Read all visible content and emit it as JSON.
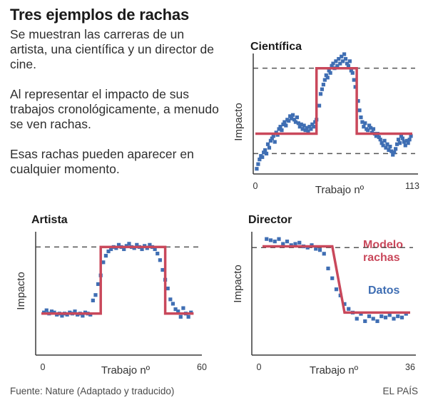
{
  "header": {
    "title": "Tres ejemplos de rachas",
    "intro": [
      "Se muestran las carreras de un artista, una científica y un director de cine.",
      "Al representar el impacto de sus trabajos cronológicamente, a menudo se ven rachas.",
      "Esas rachas pueden aparecer en cualquier momento."
    ]
  },
  "footer": {
    "source": "Fuente: Nature (Adaptado y traducido)",
    "brand": "EL PAÍS"
  },
  "legend": {
    "model": [
      "Modelo",
      "rachas"
    ],
    "data": "Datos"
  },
  "colors": {
    "model": "#c9485b",
    "data": "#3f6eb3",
    "axis": "#3a3a3a",
    "dashed": "#555555"
  },
  "chart_data": [
    {
      "id": "cientifica",
      "type": "scatter",
      "title": "Científica",
      "xlabel": "Trabajo nº",
      "ylabel": "Impacto",
      "xlim": [
        0,
        113
      ],
      "x_ticks": [
        "0",
        "113"
      ],
      "ylim": [
        0,
        1
      ],
      "dashed_levels": [
        0.88,
        0.15
      ],
      "model": {
        "name": "Modelo rachas",
        "steps": [
          [
            0,
            0.32
          ],
          [
            44,
            0.32
          ],
          [
            44,
            0.88
          ],
          [
            73,
            0.88
          ],
          [
            73,
            0.32
          ],
          [
            113,
            0.32
          ]
        ]
      },
      "points": [
        [
          1,
          0.02
        ],
        [
          2,
          0.06
        ],
        [
          3,
          0.1
        ],
        [
          4,
          0.13
        ],
        [
          5,
          0.12
        ],
        [
          6,
          0.16
        ],
        [
          7,
          0.18
        ],
        [
          8,
          0.15
        ],
        [
          9,
          0.23
        ],
        [
          10,
          0.2
        ],
        [
          11,
          0.26
        ],
        [
          12,
          0.28
        ],
        [
          13,
          0.3
        ],
        [
          14,
          0.25
        ],
        [
          15,
          0.33
        ],
        [
          16,
          0.31
        ],
        [
          17,
          0.36
        ],
        [
          18,
          0.38
        ],
        [
          19,
          0.35
        ],
        [
          20,
          0.4
        ],
        [
          21,
          0.42
        ],
        [
          22,
          0.39
        ],
        [
          23,
          0.44
        ],
        [
          24,
          0.43
        ],
        [
          25,
          0.47
        ],
        [
          26,
          0.45
        ],
        [
          27,
          0.48
        ],
        [
          28,
          0.44
        ],
        [
          29,
          0.42
        ],
        [
          30,
          0.46
        ],
        [
          31,
          0.41
        ],
        [
          32,
          0.38
        ],
        [
          33,
          0.4
        ],
        [
          34,
          0.36
        ],
        [
          35,
          0.39
        ],
        [
          36,
          0.35
        ],
        [
          37,
          0.37
        ],
        [
          38,
          0.34
        ],
        [
          39,
          0.38
        ],
        [
          40,
          0.36
        ],
        [
          41,
          0.4
        ],
        [
          42,
          0.38
        ],
        [
          43,
          0.42
        ],
        [
          44,
          0.44
        ],
        [
          46,
          0.56
        ],
        [
          47,
          0.66
        ],
        [
          48,
          0.7
        ],
        [
          49,
          0.74
        ],
        [
          50,
          0.78
        ],
        [
          51,
          0.82
        ],
        [
          52,
          0.8
        ],
        [
          53,
          0.86
        ],
        [
          54,
          0.84
        ],
        [
          55,
          0.9
        ],
        [
          56,
          0.92
        ],
        [
          57,
          0.88
        ],
        [
          58,
          0.94
        ],
        [
          59,
          0.9
        ],
        [
          60,
          0.96
        ],
        [
          61,
          0.92
        ],
        [
          62,
          0.98
        ],
        [
          63,
          0.94
        ],
        [
          64,
          1.0
        ],
        [
          65,
          0.96
        ],
        [
          66,
          0.92
        ],
        [
          67,
          0.9
        ],
        [
          68,
          0.94
        ],
        [
          69,
          0.86
        ],
        [
          70,
          0.84
        ],
        [
          71,
          0.78
        ],
        [
          72,
          0.72
        ],
        [
          74,
          0.6
        ],
        [
          75,
          0.52
        ],
        [
          76,
          0.46
        ],
        [
          77,
          0.42
        ],
        [
          78,
          0.38
        ],
        [
          79,
          0.41
        ],
        [
          80,
          0.36
        ],
        [
          81,
          0.35
        ],
        [
          82,
          0.39
        ],
        [
          83,
          0.37
        ],
        [
          84,
          0.33
        ],
        [
          85,
          0.36
        ],
        [
          86,
          0.32
        ],
        [
          87,
          0.3
        ],
        [
          88,
          0.32
        ],
        [
          89,
          0.29
        ],
        [
          90,
          0.27
        ],
        [
          91,
          0.24
        ],
        [
          92,
          0.22
        ],
        [
          93,
          0.26
        ],
        [
          94,
          0.2
        ],
        [
          95,
          0.23
        ],
        [
          96,
          0.18
        ],
        [
          97,
          0.21
        ],
        [
          98,
          0.17
        ],
        [
          99,
          0.14
        ],
        [
          100,
          0.16
        ],
        [
          101,
          0.19
        ],
        [
          102,
          0.23
        ],
        [
          103,
          0.27
        ],
        [
          104,
          0.24
        ],
        [
          105,
          0.3
        ],
        [
          106,
          0.28
        ],
        [
          107,
          0.25
        ],
        [
          108,
          0.22
        ],
        [
          109,
          0.26
        ],
        [
          110,
          0.24
        ],
        [
          111,
          0.27
        ],
        [
          112,
          0.3
        ]
      ]
    },
    {
      "id": "artista",
      "type": "scatter",
      "title": "Artista",
      "xlabel": "Trabajo nº",
      "ylabel": "Impacto",
      "xlim": [
        0,
        60
      ],
      "x_ticks": [
        "0",
        "60"
      ],
      "ylim": [
        0,
        1
      ],
      "dashed_levels": [
        0.86
      ],
      "model": {
        "name": "Modelo rachas",
        "steps": [
          [
            0,
            0.25
          ],
          [
            23,
            0.25
          ],
          [
            23,
            0.86
          ],
          [
            48,
            0.86
          ],
          [
            48,
            0.25
          ],
          [
            59,
            0.25
          ]
        ]
      },
      "points": [
        [
          1,
          0.26
        ],
        [
          2,
          0.28
        ],
        [
          3,
          0.25
        ],
        [
          4,
          0.27
        ],
        [
          5,
          0.26
        ],
        [
          6,
          0.24
        ],
        [
          7,
          0.25
        ],
        [
          8,
          0.23
        ],
        [
          9,
          0.25
        ],
        [
          10,
          0.24
        ],
        [
          11,
          0.26
        ],
        [
          12,
          0.25
        ],
        [
          13,
          0.27
        ],
        [
          14,
          0.24
        ],
        [
          15,
          0.25
        ],
        [
          16,
          0.23
        ],
        [
          17,
          0.26
        ],
        [
          18,
          0.25
        ],
        [
          19,
          0.24
        ],
        [
          20,
          0.37
        ],
        [
          21,
          0.42
        ],
        [
          22,
          0.52
        ],
        [
          23,
          0.6
        ],
        [
          24,
          0.72
        ],
        [
          25,
          0.78
        ],
        [
          26,
          0.82
        ],
        [
          27,
          0.84
        ],
        [
          28,
          0.86
        ],
        [
          29,
          0.85
        ],
        [
          30,
          0.88
        ],
        [
          31,
          0.86
        ],
        [
          32,
          0.84
        ],
        [
          33,
          0.87
        ],
        [
          34,
          0.89
        ],
        [
          35,
          0.86
        ],
        [
          36,
          0.85
        ],
        [
          37,
          0.88
        ],
        [
          38,
          0.86
        ],
        [
          39,
          0.84
        ],
        [
          40,
          0.87
        ],
        [
          41,
          0.85
        ],
        [
          42,
          0.88
        ],
        [
          43,
          0.86
        ],
        [
          44,
          0.84
        ],
        [
          45,
          0.8
        ],
        [
          46,
          0.74
        ],
        [
          47,
          0.65
        ],
        [
          48,
          0.56
        ],
        [
          49,
          0.48
        ],
        [
          50,
          0.38
        ],
        [
          51,
          0.34
        ],
        [
          52,
          0.29
        ],
        [
          53,
          0.27
        ],
        [
          54,
          0.22
        ],
        [
          55,
          0.3
        ],
        [
          56,
          0.25
        ],
        [
          57,
          0.22
        ],
        [
          58,
          0.26
        ]
      ]
    },
    {
      "id": "director",
      "type": "scatter",
      "title": "Director",
      "xlabel": "Trabajo nº",
      "ylabel": "Impacto",
      "xlim": [
        0,
        36
      ],
      "x_ticks": [
        "0",
        "36"
      ],
      "ylim": [
        0,
        1
      ],
      "dashed_levels": [
        0.83
      ],
      "model": {
        "name": "Modelo rachas",
        "steps": [
          [
            0,
            0.84
          ],
          [
            17,
            0.84
          ],
          [
            20,
            0.3
          ],
          [
            36,
            0.3
          ]
        ]
      },
      "points": [
        [
          1,
          0.9
        ],
        [
          2,
          0.89
        ],
        [
          3,
          0.88
        ],
        [
          4,
          0.9
        ],
        [
          5,
          0.86
        ],
        [
          6,
          0.88
        ],
        [
          7,
          0.85
        ],
        [
          8,
          0.86
        ],
        [
          9,
          0.87
        ],
        [
          10,
          0.84
        ],
        [
          11,
          0.83
        ],
        [
          12,
          0.85
        ],
        [
          13,
          0.82
        ],
        [
          14,
          0.81
        ],
        [
          15,
          0.78
        ],
        [
          16,
          0.66
        ],
        [
          17,
          0.58
        ],
        [
          18,
          0.49
        ],
        [
          19,
          0.44
        ],
        [
          20,
          0.37
        ],
        [
          21,
          0.33
        ],
        [
          22,
          0.3
        ],
        [
          23,
          0.25
        ],
        [
          24,
          0.29
        ],
        [
          25,
          0.23
        ],
        [
          26,
          0.27
        ],
        [
          27,
          0.25
        ],
        [
          28,
          0.23
        ],
        [
          29,
          0.27
        ],
        [
          30,
          0.26
        ],
        [
          31,
          0.28
        ],
        [
          32,
          0.25
        ],
        [
          33,
          0.27
        ],
        [
          34,
          0.26
        ],
        [
          35,
          0.29
        ]
      ]
    }
  ]
}
